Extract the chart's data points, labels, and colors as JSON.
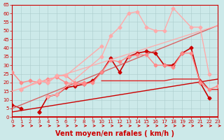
{
  "xlabel": "Vent moyen/en rafales ( km/h )",
  "xlim": [
    0,
    23
  ],
  "ylim": [
    0,
    65
  ],
  "yticks": [
    0,
    5,
    10,
    15,
    20,
    25,
    30,
    35,
    40,
    45,
    50,
    55,
    60,
    65
  ],
  "xticks": [
    0,
    1,
    2,
    3,
    4,
    5,
    6,
    7,
    8,
    9,
    10,
    11,
    12,
    13,
    14,
    15,
    16,
    17,
    18,
    19,
    20,
    21,
    22,
    23
  ],
  "bg_color": "#cce9e9",
  "grid_color": "#aacccc",
  "series": [
    {
      "x": [
        0,
        1,
        2,
        3,
        4,
        5,
        6,
        7,
        8,
        9,
        10,
        11,
        12,
        13,
        14,
        15,
        16,
        17,
        18,
        19,
        20,
        21,
        22,
        23
      ],
      "y": [
        7,
        5,
        null,
        3,
        null,
        null,
        null,
        null,
        null,
        null,
        null,
        null,
        null,
        null,
        null,
        null,
        null,
        null,
        null,
        null,
        null,
        null,
        null,
        null
      ],
      "color": "#cc0000",
      "linewidth": 1.0,
      "marker": "D",
      "markersize": 2.5,
      "alpha": 1.0
    },
    {
      "x": [
        3,
        4,
        5,
        6,
        7,
        8,
        9,
        10,
        11,
        12,
        13,
        14,
        15,
        16,
        17,
        18,
        19,
        20,
        21,
        22
      ],
      "y": [
        3,
        12,
        13,
        17,
        18,
        19,
        21,
        26,
        34,
        26,
        35,
        37,
        38,
        37,
        30,
        30,
        37,
        40,
        20,
        11
      ],
      "color": "#cc0000",
      "linewidth": 1.2,
      "marker": "D",
      "markersize": 2.5,
      "alpha": 1.0
    },
    {
      "x": [
        0,
        23
      ],
      "y": [
        3,
        22
      ],
      "color": "#cc0000",
      "linewidth": 1.0,
      "marker": null,
      "markersize": 0,
      "alpha": 1.0
    },
    {
      "x": [
        0,
        1,
        2,
        3,
        4,
        5,
        6,
        7,
        8,
        9,
        10,
        11,
        12,
        13,
        14,
        15,
        16,
        17,
        18,
        19,
        20,
        21,
        22,
        23
      ],
      "y": [
        null,
        null,
        null,
        null,
        null,
        null,
        null,
        null,
        null,
        null,
        21,
        21,
        21,
        21,
        21,
        21,
        21,
        21,
        22,
        22,
        22,
        22,
        16,
        16
      ],
      "color": "#dd2222",
      "linewidth": 1.0,
      "marker": null,
      "markersize": 0,
      "alpha": 1.0
    },
    {
      "x": [
        0,
        23
      ],
      "y": [
        5,
        53
      ],
      "color": "#dd4444",
      "linewidth": 1.0,
      "marker": null,
      "markersize": 0,
      "alpha": 0.8
    },
    {
      "x": [
        0,
        1,
        2,
        3,
        4,
        5,
        6,
        7,
        8
      ],
      "y": [
        26,
        20,
        21,
        20,
        22,
        23,
        20,
        19,
        20
      ],
      "color": "#ff8888",
      "linewidth": 1.0,
      "marker": "D",
      "markersize": 2.5,
      "alpha": 1.0
    },
    {
      "x": [
        1,
        3,
        4,
        5,
        6,
        7,
        8,
        9,
        10,
        11,
        12,
        13,
        14,
        15,
        16,
        17,
        18,
        19,
        20,
        21,
        22,
        23
      ],
      "y": [
        16,
        21,
        20,
        24,
        24,
        20,
        19,
        20,
        26,
        33,
        32,
        35,
        36,
        36,
        30,
        30,
        29,
        37,
        37,
        20,
        16,
        18
      ],
      "color": "#ff8888",
      "linewidth": 1.0,
      "marker": "D",
      "markersize": 2.5,
      "alpha": 1.0
    },
    {
      "x": [
        4,
        5,
        10,
        11,
        12,
        13,
        14,
        15,
        16,
        17,
        18,
        20,
        21,
        22
      ],
      "y": [
        12,
        13,
        35,
        47,
        52,
        60,
        61,
        52,
        50,
        50,
        63,
        52,
        52,
        25
      ],
      "color": "#ffaaaa",
      "linewidth": 1.0,
      "marker": "D",
      "markersize": 2.5,
      "alpha": 1.0
    },
    {
      "x": [
        1,
        3,
        4,
        5,
        6,
        10
      ],
      "y": [
        16,
        21,
        20,
        24,
        24,
        41
      ],
      "color": "#ffaaaa",
      "linewidth": 1.0,
      "marker": "D",
      "markersize": 2.5,
      "alpha": 1.0
    },
    {
      "x": [
        0,
        23
      ],
      "y": [
        15,
        53
      ],
      "color": "#ffaaaa",
      "linewidth": 1.0,
      "marker": null,
      "markersize": 0,
      "alpha": 0.9
    }
  ],
  "axis_fontsize": 6,
  "tick_fontsize": 5,
  "xlabel_fontsize": 7
}
